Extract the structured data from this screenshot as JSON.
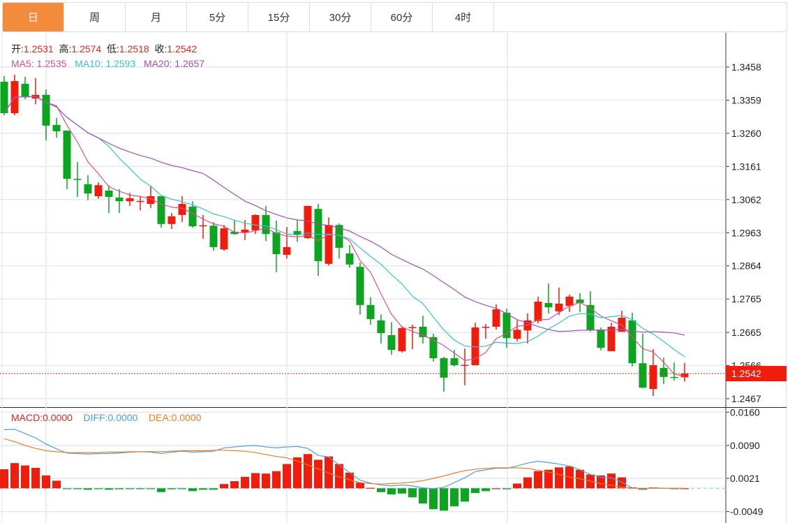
{
  "tabs": [
    "日",
    "周",
    "月",
    "5分",
    "15分",
    "30分",
    "60分",
    "4时"
  ],
  "active_tab": 0,
  "info": {
    "open_label": "开:",
    "open": "1.2531",
    "high_label": "高:",
    "high": "1.2574",
    "low_label": "低:",
    "low": "1.2518",
    "close_label": "收:",
    "close": "1.2542",
    "ma5_label": "MA5: ",
    "ma5": "1.2535",
    "ma10_label": "MA10: ",
    "ma10": "1.2593",
    "ma20_label": "MA20: ",
    "ma20": "1.2657"
  },
  "macd_info": {
    "macd_label": "MACD:",
    "macd": "0.0000",
    "diff_label": "DIFF:",
    "diff": "0.0000",
    "dea_label": "DEA:",
    "dea": "0.0000"
  },
  "colors": {
    "up": "#f01c0c",
    "down": "#0ba51f",
    "ma5": "#e0508a",
    "ma10": "#3bbfd3",
    "ma20": "#a34fb5",
    "diff": "#4a9fe0",
    "dea": "#f07d22",
    "accent": "#f28c3c"
  },
  "chart_data": [
    {
      "type": "candlestick",
      "ylim": [
        1.2467,
        1.3458
      ],
      "y_ticks": [
        "1.3458",
        "1.3359",
        "1.3260",
        "1.3161",
        "1.3062",
        "1.2963",
        "1.2864",
        "1.2765",
        "1.2665",
        "1.2566",
        "1.2467"
      ],
      "last_price_label": "1.2542",
      "last_price": 1.2542,
      "grid": true,
      "moving_averages": [
        5,
        10,
        20
      ],
      "ohlc": [
        [
          1.3414,
          1.3431,
          1.3314,
          1.332
        ],
        [
          1.332,
          1.3435,
          1.3314,
          1.3416
        ],
        [
          1.3408,
          1.3429,
          1.3362,
          1.337
        ],
        [
          1.3364,
          1.3425,
          1.3347,
          1.3375
        ],
        [
          1.3375,
          1.3391,
          1.3239,
          1.3283
        ],
        [
          1.3285,
          1.3306,
          1.3247,
          1.3266
        ],
        [
          1.3268,
          1.3268,
          1.3093,
          1.3124
        ],
        [
          1.3124,
          1.3174,
          1.307,
          1.3122
        ],
        [
          1.3108,
          1.3135,
          1.306,
          1.308
        ],
        [
          1.3072,
          1.3114,
          1.3064,
          1.3105
        ],
        [
          1.3089,
          1.3105,
          1.3022,
          1.307
        ],
        [
          1.3068,
          1.3093,
          1.3022,
          1.3057
        ],
        [
          1.3057,
          1.3082,
          1.3043,
          1.3066
        ],
        [
          1.3057,
          1.3072,
          1.303,
          1.3058
        ],
        [
          1.3049,
          1.3103,
          1.3037,
          1.3072
        ],
        [
          1.3072,
          1.3072,
          1.2978,
          1.2989
        ],
        [
          1.2989,
          1.3022,
          1.2974,
          1.3012
        ],
        [
          1.3016,
          1.3072,
          1.2995,
          1.3049
        ],
        [
          1.3041,
          1.3057,
          1.2978,
          1.2982
        ],
        [
          1.2984,
          1.3016,
          1.2945,
          1.2985
        ],
        [
          1.2984,
          1.2995,
          1.2909,
          1.292
        ],
        [
          1.2913,
          1.2986,
          1.2909,
          1.2976
        ],
        [
          1.2966,
          1.3001,
          1.2957,
          1.2959
        ],
        [
          1.2964,
          1.3001,
          1.2941,
          1.2972
        ],
        [
          1.297,
          1.3018,
          1.2959,
          1.3016
        ],
        [
          1.3016,
          1.3043,
          1.2938,
          1.2959
        ],
        [
          1.2964,
          1.2999,
          1.2845,
          1.2899
        ],
        [
          1.2897,
          1.298,
          1.2886,
          1.292
        ],
        [
          1.2968,
          1.3001,
          1.2936,
          1.2957
        ],
        [
          1.2947,
          1.3043,
          1.2945,
          1.3043
        ],
        [
          1.3034,
          1.3049,
          1.2834,
          1.2878
        ],
        [
          1.287,
          1.3009,
          1.2865,
          1.2986
        ],
        [
          1.2986,
          1.2991,
          1.2886,
          1.2918
        ],
        [
          1.2901,
          1.2926,
          1.2859,
          1.2868
        ],
        [
          1.2861,
          1.2874,
          1.2719,
          1.2747
        ],
        [
          1.2747,
          1.277,
          1.2688,
          1.2705
        ],
        [
          1.2701,
          1.2719,
          1.2632,
          1.2663
        ],
        [
          1.2657,
          1.2696,
          1.2598,
          1.2613
        ],
        [
          1.2609,
          1.2684,
          1.2605,
          1.2678
        ],
        [
          1.268,
          1.2688,
          1.2615,
          1.2681
        ],
        [
          1.2682,
          1.2715,
          1.2632,
          1.2651
        ],
        [
          1.2651,
          1.2661,
          1.2578,
          1.2588
        ],
        [
          1.2588,
          1.2592,
          1.2488,
          1.253
        ],
        [
          1.2588,
          1.2613,
          1.2563,
          1.2567
        ],
        [
          1.2567,
          1.2617,
          1.2507,
          1.2568
        ],
        [
          1.2567,
          1.2694,
          1.2567,
          1.268
        ],
        [
          1.268,
          1.269,
          1.2646,
          1.2682
        ],
        [
          1.2682,
          1.2749,
          1.2673,
          1.2734
        ],
        [
          1.2724,
          1.2736,
          1.2619,
          1.2648
        ],
        [
          1.2646,
          1.2701,
          1.2638,
          1.2673
        ],
        [
          1.2671,
          1.2722,
          1.2632,
          1.2701
        ],
        [
          1.2699,
          1.2772,
          1.2692,
          1.2757
        ],
        [
          1.2753,
          1.2811,
          1.2722,
          1.274
        ],
        [
          1.2728,
          1.2799,
          1.2717,
          1.2751
        ],
        [
          1.2744,
          1.2778,
          1.2726,
          1.2772
        ],
        [
          1.2763,
          1.2782,
          1.2726,
          1.2753
        ],
        [
          1.2747,
          1.2788,
          1.2667,
          1.2673
        ],
        [
          1.2673,
          1.268,
          1.2611,
          1.2619
        ],
        [
          1.2609,
          1.2694,
          1.2609,
          1.2682
        ],
        [
          1.2667,
          1.273,
          1.2667,
          1.2709
        ],
        [
          1.2701,
          1.2724,
          1.2563,
          1.2573
        ],
        [
          1.2573,
          1.2661,
          1.2498,
          1.25
        ],
        [
          1.2496,
          1.2615,
          1.2475,
          1.2567
        ],
        [
          1.2559,
          1.259,
          1.2511,
          1.2532
        ],
        [
          1.2532,
          1.2575,
          1.2521,
          1.253
        ],
        [
          1.2531,
          1.2574,
          1.2518,
          1.2542
        ]
      ]
    },
    {
      "type": "bar+line",
      "ylim": [
        -0.0049,
        0.016
      ],
      "y_ticks": [
        "0.0160",
        "0.0090",
        "0.0021",
        "-0.0049"
      ],
      "macd": [
        0.004,
        0.0053,
        0.0048,
        0.0043,
        0.0027,
        0.0016,
        -0.0001,
        -0.0001,
        -0.0003,
        -0.0001,
        -0.0003,
        -0.0002,
        -0.0001,
        -0.0001,
        -0.0001,
        -0.0008,
        -0.0002,
        -0.0001,
        -0.0006,
        -0.0003,
        -0.0003,
        0.0009,
        0.0015,
        0.0024,
        0.0032,
        0.0031,
        0.0036,
        0.0051,
        0.0065,
        0.0072,
        0.006,
        0.0067,
        0.0051,
        0.0033,
        0.0012,
        0.0001,
        -0.0008,
        -0.0013,
        -0.0011,
        -0.0019,
        -0.0032,
        -0.0044,
        -0.0047,
        -0.0038,
        -0.0028,
        -0.001,
        -0.0006,
        0.0,
        -0.0002,
        0.001,
        0.0023,
        0.0036,
        0.0039,
        0.0044,
        0.0046,
        0.0039,
        0.0029,
        0.0027,
        0.0031,
        0.0023,
        0.0002,
        -0.0003,
        0.0002,
        0.0001,
        -0.0001,
        0.0
      ],
      "diff": [
        0.0123,
        0.0124,
        0.0115,
        0.0106,
        0.0093,
        0.0083,
        0.0074,
        0.0073,
        0.0072,
        0.0073,
        0.0073,
        0.0074,
        0.0076,
        0.0077,
        0.0076,
        0.0073,
        0.0076,
        0.0078,
        0.0076,
        0.0077,
        0.0078,
        0.0085,
        0.0087,
        0.0089,
        0.009,
        0.0087,
        0.0085,
        0.0087,
        0.0088,
        0.0084,
        0.0069,
        0.0066,
        0.0049,
        0.0033,
        0.0017,
        0.0011,
        0.0007,
        0.0005,
        0.0007,
        0.0005,
        0.0001,
        -0.0001,
        0.0002,
        0.0012,
        0.0022,
        0.0035,
        0.0039,
        0.0042,
        0.0042,
        0.0047,
        0.0053,
        0.0057,
        0.0054,
        0.0051,
        0.0047,
        0.0039,
        0.0029,
        0.0023,
        0.0022,
        0.0013,
        0.0001,
        -0.0001,
        0.0001,
        0.0,
        0.0,
        0.0
      ],
      "dea": [
        0.0104,
        0.0098,
        0.009,
        0.0084,
        0.0079,
        0.0077,
        0.0075,
        0.0075,
        0.0075,
        0.0075,
        0.0076,
        0.0076,
        0.0077,
        0.0077,
        0.0077,
        0.0077,
        0.0078,
        0.0079,
        0.0079,
        0.0079,
        0.008,
        0.008,
        0.0079,
        0.0078,
        0.0075,
        0.0071,
        0.0067,
        0.0064,
        0.0057,
        0.0049,
        0.0041,
        0.0032,
        0.0024,
        0.0018,
        0.0012,
        0.001,
        0.0009,
        0.001,
        0.0011,
        0.0013,
        0.0016,
        0.0021,
        0.0026,
        0.0032,
        0.0037,
        0.004,
        0.0042,
        0.0043,
        0.0043,
        0.0043,
        0.0042,
        0.0038,
        0.0034,
        0.0029,
        0.0024,
        0.002,
        0.0015,
        0.001,
        0.0006,
        0.0002,
        0.0,
        0.0,
        0.0,
        0.0,
        0.0,
        0.0
      ]
    }
  ]
}
